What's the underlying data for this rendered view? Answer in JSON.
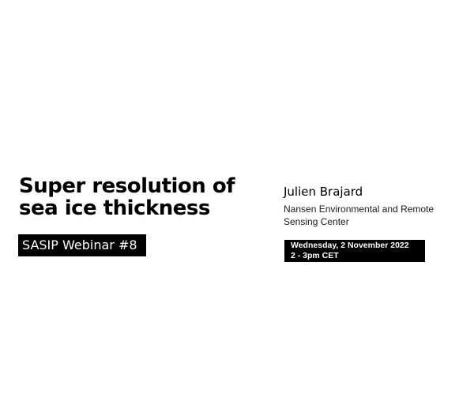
{
  "title": {
    "line1": "Super resolution of",
    "line2": "sea ice thickness"
  },
  "webinar_label": "SASIP Webinar #8",
  "speaker": {
    "name": "Julien Brajard",
    "affiliation_line1": "Nansen Environmental and Remote",
    "affiliation_line2": "Sensing Center"
  },
  "event": {
    "date": "Wednesday, 2 November 2022",
    "time": "2 - 3pm CET"
  },
  "colors": {
    "background": "#ffffff",
    "badge_bg": "#000000",
    "badge_text": "#ffffff"
  }
}
